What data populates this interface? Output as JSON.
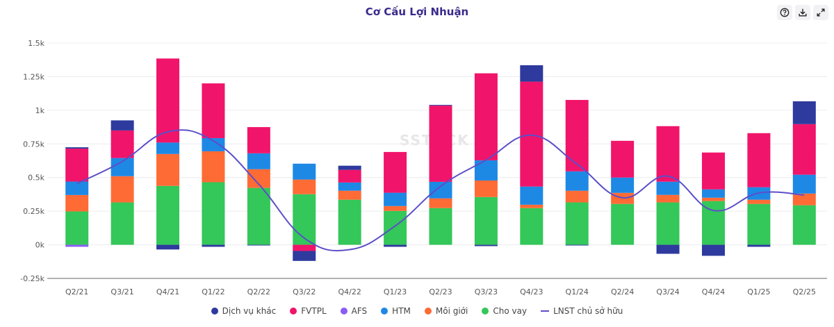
{
  "toolbar": {
    "help_icon": "help-circle-icon",
    "download_icon": "download-icon",
    "expand_icon": "expand-icon"
  },
  "watermark": "SSTOCK",
  "chart_data": {
    "type": "bar",
    "title": "Cơ Cấu Lợi Nhuận",
    "xlabel": "",
    "ylabel": "",
    "ylim": [
      -250,
      1500
    ],
    "yticks": [
      -250,
      0,
      250,
      500,
      750,
      1000,
      1250,
      1500
    ],
    "ytick_labels": [
      "-0.25k",
      "0k",
      "0.25k",
      "0.5k",
      "0.75k",
      "1k",
      "1.25k",
      "1.5k"
    ],
    "grid": true,
    "stacked": true,
    "legend_position": "bottom-center",
    "categories": [
      "Q2/21",
      "Q3/21",
      "Q4/21",
      "Q1/22",
      "Q2/22",
      "Q3/22",
      "Q4/22",
      "Q1/23",
      "Q2/23",
      "Q3/23",
      "Q4/23",
      "Q1/24",
      "Q2/24",
      "Q3/24",
      "Q4/24",
      "Q1/25",
      "Q2/25"
    ],
    "series": [
      {
        "name": "Cho vay",
        "type": "bar",
        "color": "#34c759",
        "values": [
          248,
          315,
          438,
          465,
          423,
          376,
          335,
          252,
          273,
          355,
          273,
          315,
          304,
          315,
          325,
          304,
          294
        ]
      },
      {
        "name": "Môi giới",
        "type": "bar",
        "color": "#ff6b35",
        "values": [
          122,
          195,
          237,
          230,
          139,
          109,
          67,
          36,
          72,
          123,
          25,
          87,
          82,
          56,
          25,
          31,
          87
        ]
      },
      {
        "name": "HTM",
        "type": "bar",
        "color": "#1e88e5",
        "values": [
          100,
          135,
          85,
          98,
          118,
          118,
          61,
          99,
          123,
          150,
          135,
          144,
          114,
          98,
          62,
          93,
          140
        ]
      },
      {
        "name": "AFS",
        "type": "bar",
        "color": "#8b5cf6",
        "values": [
          -15,
          0,
          0,
          0,
          0,
          0,
          0,
          0,
          0,
          0,
          0,
          0,
          0,
          0,
          0,
          0,
          0
        ]
      },
      {
        "name": "FVTPL",
        "type": "bar",
        "color": "#f0146a",
        "values": [
          245,
          205,
          625,
          407,
          195,
          -46,
          94,
          303,
          567,
          647,
          780,
          531,
          273,
          413,
          274,
          402,
          376
        ]
      },
      {
        "name": "Dịch vụ khác",
        "type": "bar",
        "color": "#2e3a9e",
        "values": [
          10,
          75,
          -35,
          -15,
          -5,
          -74,
          31,
          -15,
          5,
          -10,
          122,
          -5,
          0,
          -67,
          -82,
          -15,
          170
        ]
      },
      {
        "name": "LNST chủ sở hữu",
        "type": "line",
        "color": "#5b4fc9",
        "values": [
          455,
          620,
          840,
          773,
          450,
          50,
          -36,
          140,
          435,
          630,
          815,
          600,
          350,
          510,
          255,
          385,
          370
        ]
      }
    ],
    "legend_order": [
      "Dịch vụ khác",
      "FVTPL",
      "AFS",
      "HTM",
      "Môi giới",
      "Cho vay",
      "LNST chủ sở hữu"
    ]
  }
}
